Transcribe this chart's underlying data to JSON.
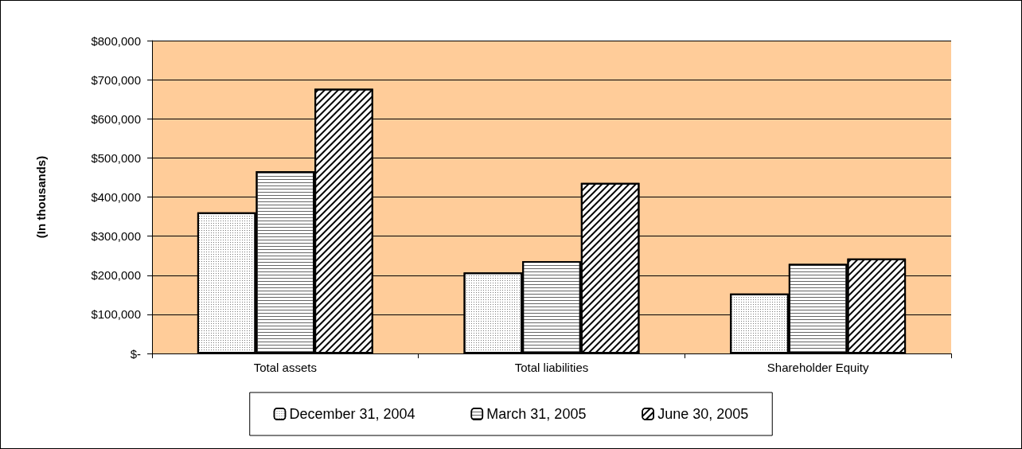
{
  "chart_data": {
    "type": "bar",
    "ylabel": "(In thousands)",
    "categories": [
      "Total assets",
      "Total liabilities",
      "Shareholder Equity"
    ],
    "series": [
      {
        "name": "December 31, 2004",
        "color": "#ffffff",
        "values": [
          361000,
          207000,
          153000
        ]
      },
      {
        "name": "March 31, 2005",
        "color": "#ffffff",
        "values": [
          466000,
          236000,
          229000
        ]
      },
      {
        "name": "June 30, 2005",
        "color": "#ffffff",
        "values": [
          677000,
          436000,
          243000
        ]
      }
    ],
    "ylim": [
      0,
      800000
    ],
    "yticks": [
      {
        "value": 0,
        "label": "$-"
      },
      {
        "value": 100000,
        "label": "$100,000"
      },
      {
        "value": 200000,
        "label": "$200,000"
      },
      {
        "value": 300000,
        "label": "$300,000"
      },
      {
        "value": 400000,
        "label": "$400,000"
      },
      {
        "value": 500000,
        "label": "$500,000"
      },
      {
        "value": 600000,
        "label": "$600,000"
      },
      {
        "value": 700000,
        "label": "$700,000"
      },
      {
        "value": 800000,
        "label": "$800,000"
      }
    ],
    "grid": "y",
    "legend": "bottom"
  }
}
